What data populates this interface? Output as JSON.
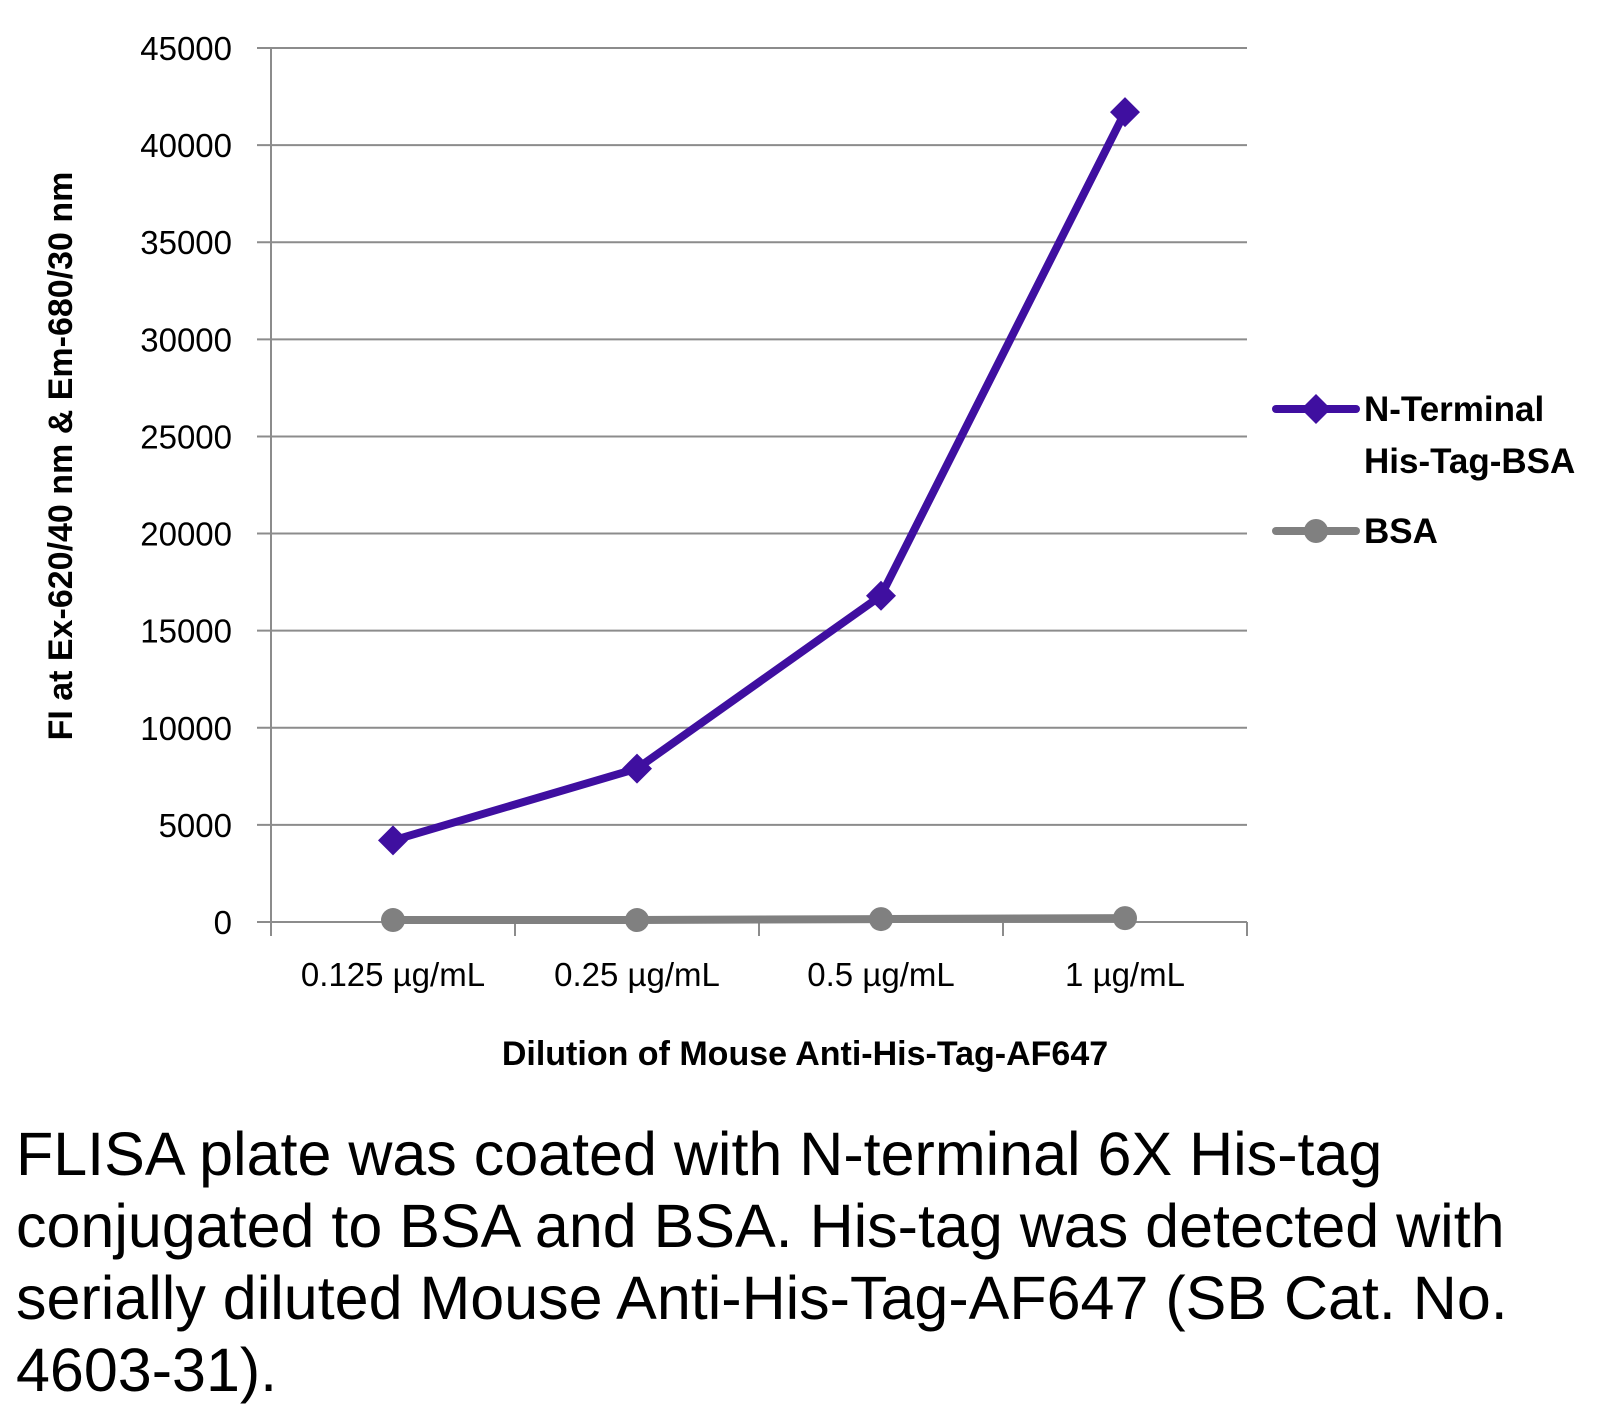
{
  "chart_data": {
    "type": "line",
    "categories": [
      "0.125 µg/mL",
      "0.25 µg/mL",
      "0.5 µg/mL",
      "1 µg/mL"
    ],
    "series": [
      {
        "name": "N-Terminal His-Tag-BSA",
        "name_lines": [
          "N-Terminal",
          "His-Tag-BSA"
        ],
        "values": [
          4200,
          7900,
          16800,
          41700
        ],
        "color": "#3f0fa0",
        "marker": "diamond"
      },
      {
        "name": "BSA",
        "name_lines": [
          "BSA"
        ],
        "values": [
          100,
          100,
          150,
          200
        ],
        "color": "#808080",
        "marker": "circle"
      }
    ],
    "ylim": [
      0,
      45000
    ],
    "yticks": [
      0,
      5000,
      10000,
      15000,
      20000,
      25000,
      30000,
      35000,
      40000,
      45000
    ],
    "xlabel": "Dilution of Mouse Anti-His-Tag-AF647",
    "ylabel": "FI at Ex-620/40 nm & Em-680/30 nm",
    "grid": true,
    "legend": "right"
  },
  "caption": "FLISA plate was coated with N-terminal 6X His-tag conjugated to BSA and BSA.  His-tag was detected with serially diluted Mouse Anti-His-Tag-AF647 (SB Cat. No. 4603-31)."
}
